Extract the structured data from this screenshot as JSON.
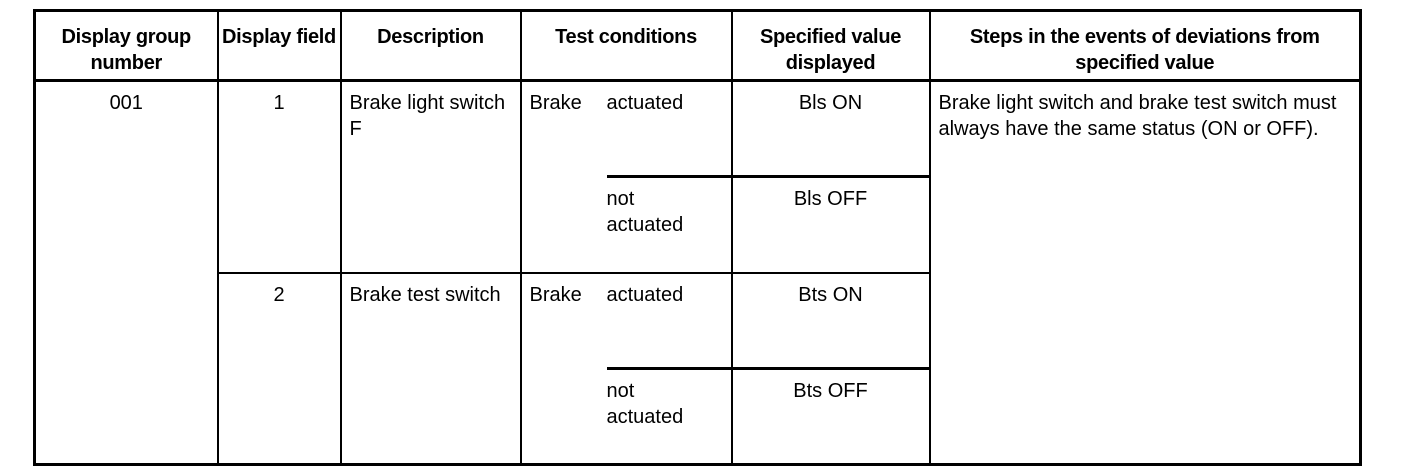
{
  "headers": {
    "group": "Display group number",
    "field": "Display field",
    "description": "Description",
    "conditions": "Test conditions",
    "specified": "Specified value displayed",
    "steps": "Steps in the events of deviations from specified value"
  },
  "group_number": "001",
  "rows": [
    {
      "field": "1",
      "description": "Brake light switch F",
      "component": "Brake",
      "states": [
        {
          "condition": "actuated",
          "value": "Bls ON"
        },
        {
          "condition": "not actuated",
          "value": "Bls OFF"
        }
      ]
    },
    {
      "field": "2",
      "description": "Brake test switch",
      "component": "Brake",
      "states": [
        {
          "condition": "actuated",
          "value": "Bts ON"
        },
        {
          "condition": "not actuated",
          "value": "Bts OFF"
        }
      ]
    }
  ],
  "steps_text": "Brake light switch and brake test switch must always have the same status (ON or OFF)."
}
